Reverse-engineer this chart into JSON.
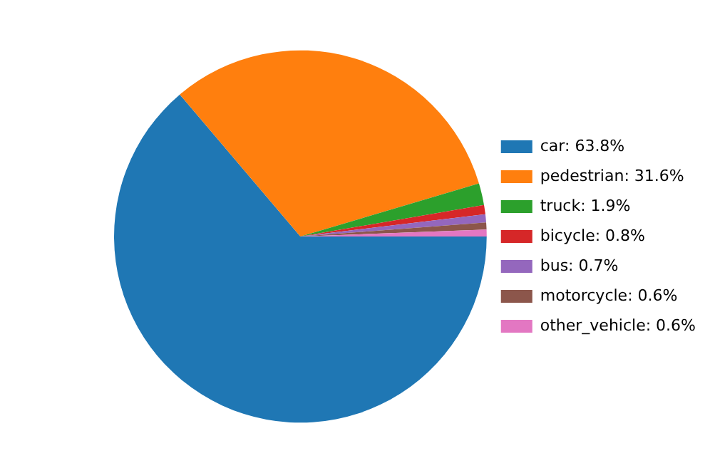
{
  "chart_data": {
    "type": "pie",
    "categories": [
      "car: 63.8%",
      "pedestrian: 31.6%",
      "truck: 1.9%",
      "bicycle: 0.8%",
      "bus: 0.7%",
      "motorcycle: 0.6%",
      "other_vehicle: 0.6%"
    ],
    "values": [
      63.8,
      31.6,
      1.9,
      0.8,
      0.7,
      0.6,
      0.6
    ],
    "colors": [
      "#1f77b4",
      "#ff7f0e",
      "#2ca02c",
      "#d62728",
      "#9467bd",
      "#8c564b",
      "#e377c2"
    ],
    "legend": "right"
  }
}
